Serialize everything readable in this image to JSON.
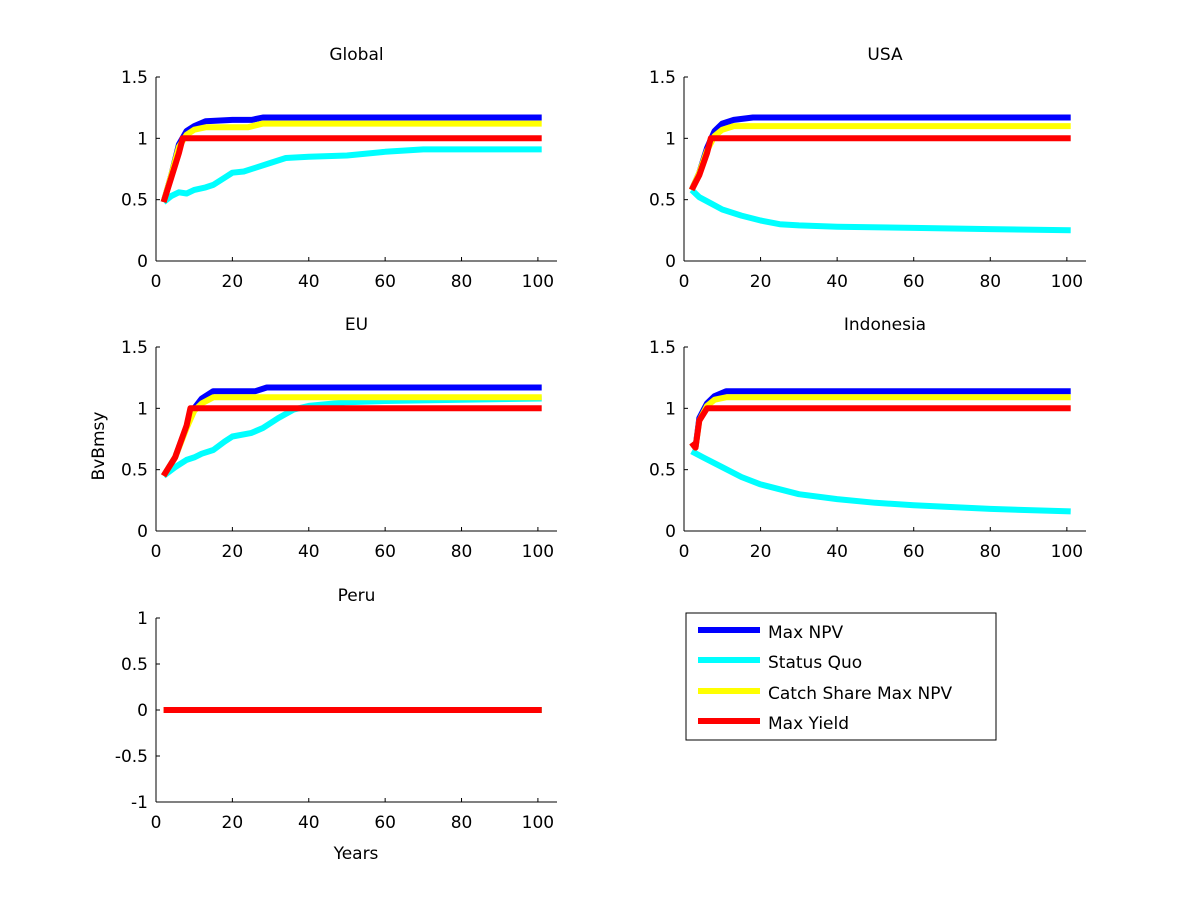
{
  "figure": {
    "ylabel": "BvBmsy",
    "xlabel": "Years"
  },
  "colors": {
    "Max NPV": "#0000ff",
    "Status Quo": "#00ffff",
    "Catch Share Max NPV": "#ffff00",
    "Max Yield": "#ff0000"
  },
  "legend": {
    "entries": [
      "Max NPV",
      "Status Quo",
      "Catch Share Max NPV",
      "Max Yield"
    ]
  },
  "chart_data": [
    {
      "type": "line",
      "title": "Global",
      "xlim": [
        0,
        105
      ],
      "ylim": [
        0,
        1.5
      ],
      "xticks": [
        0,
        20,
        40,
        60,
        80,
        100
      ],
      "yticks": [
        0,
        0.5,
        1,
        1.5
      ],
      "xtick_labels": [
        "0",
        "20",
        "40",
        "60",
        "80",
        "100"
      ],
      "ytick_labels": [
        "0",
        "0.5",
        "1",
        "1.5"
      ],
      "series": [
        {
          "name": "Max NPV",
          "points": [
            [
              2,
              0.48
            ],
            [
              4,
              0.7
            ],
            [
              6,
              0.95
            ],
            [
              8,
              1.06
            ],
            [
              10,
              1.1
            ],
            [
              13,
              1.14
            ],
            [
              20,
              1.15
            ],
            [
              25,
              1.15
            ],
            [
              28,
              1.17
            ],
            [
              101,
              1.17
            ]
          ]
        },
        {
          "name": "Status Quo",
          "points": [
            [
              2,
              0.48
            ],
            [
              4,
              0.53
            ],
            [
              6,
              0.56
            ],
            [
              8,
              0.55
            ],
            [
              10,
              0.58
            ],
            [
              13,
              0.6
            ],
            [
              15,
              0.62
            ],
            [
              18,
              0.68
            ],
            [
              20,
              0.72
            ],
            [
              23,
              0.73
            ],
            [
              26,
              0.76
            ],
            [
              30,
              0.8
            ],
            [
              34,
              0.84
            ],
            [
              40,
              0.85
            ],
            [
              50,
              0.86
            ],
            [
              60,
              0.89
            ],
            [
              70,
              0.91
            ],
            [
              101,
              0.91
            ]
          ]
        },
        {
          "name": "Catch Share Max NPV",
          "points": [
            [
              2,
              0.48
            ],
            [
              4,
              0.7
            ],
            [
              6,
              0.93
            ],
            [
              8,
              1.03
            ],
            [
              10,
              1.07
            ],
            [
              13,
              1.09
            ],
            [
              24,
              1.09
            ],
            [
              28,
              1.12
            ],
            [
              101,
              1.12
            ]
          ]
        },
        {
          "name": "Max Yield",
          "points": [
            [
              2,
              0.48
            ],
            [
              4,
              0.68
            ],
            [
              6,
              0.88
            ],
            [
              7,
              1.0
            ],
            [
              101,
              1.0
            ]
          ]
        }
      ]
    },
    {
      "type": "line",
      "title": "USA",
      "xlim": [
        0,
        105
      ],
      "ylim": [
        0,
        1.5
      ],
      "xticks": [
        0,
        20,
        40,
        60,
        80,
        100
      ],
      "yticks": [
        0,
        0.5,
        1,
        1.5
      ],
      "xtick_labels": [
        "0",
        "20",
        "40",
        "60",
        "80",
        "100"
      ],
      "ytick_labels": [
        "0",
        "0.5",
        "1",
        "1.5"
      ],
      "series": [
        {
          "name": "Max NPV",
          "points": [
            [
              2,
              0.58
            ],
            [
              4,
              0.72
            ],
            [
              6,
              0.92
            ],
            [
              8,
              1.06
            ],
            [
              10,
              1.12
            ],
            [
              13,
              1.15
            ],
            [
              18,
              1.17
            ],
            [
              101,
              1.17
            ]
          ]
        },
        {
          "name": "Status Quo",
          "points": [
            [
              2,
              0.58
            ],
            [
              4,
              0.52
            ],
            [
              7,
              0.47
            ],
            [
              10,
              0.42
            ],
            [
              15,
              0.37
            ],
            [
              20,
              0.33
            ],
            [
              25,
              0.3
            ],
            [
              30,
              0.29
            ],
            [
              40,
              0.28
            ],
            [
              60,
              0.27
            ],
            [
              80,
              0.26
            ],
            [
              101,
              0.25
            ]
          ]
        },
        {
          "name": "Catch Share Max NPV",
          "points": [
            [
              2,
              0.58
            ],
            [
              4,
              0.72
            ],
            [
              6,
              0.9
            ],
            [
              8,
              1.02
            ],
            [
              10,
              1.07
            ],
            [
              13,
              1.1
            ],
            [
              101,
              1.1
            ]
          ]
        },
        {
          "name": "Max Yield",
          "points": [
            [
              2,
              0.58
            ],
            [
              4,
              0.7
            ],
            [
              6,
              0.88
            ],
            [
              7,
              1.0
            ],
            [
              101,
              1.0
            ]
          ]
        }
      ]
    },
    {
      "type": "line",
      "title": "EU",
      "xlim": [
        0,
        105
      ],
      "ylim": [
        0,
        1.5
      ],
      "xticks": [
        0,
        20,
        40,
        60,
        80,
        100
      ],
      "yticks": [
        0,
        0.5,
        1,
        1.5
      ],
      "xtick_labels": [
        "0",
        "20",
        "40",
        "60",
        "80",
        "100"
      ],
      "ytick_labels": [
        "0",
        "0.5",
        "1",
        "1.5"
      ],
      "series": [
        {
          "name": "Max NPV",
          "points": [
            [
              2,
              0.45
            ],
            [
              5,
              0.6
            ],
            [
              8,
              0.85
            ],
            [
              10,
              1.0
            ],
            [
              12,
              1.08
            ],
            [
              15,
              1.14
            ],
            [
              26,
              1.14
            ],
            [
              29,
              1.17
            ],
            [
              101,
              1.17
            ]
          ]
        },
        {
          "name": "Status Quo",
          "points": [
            [
              2,
              0.45
            ],
            [
              5,
              0.52
            ],
            [
              8,
              0.58
            ],
            [
              10,
              0.6
            ],
            [
              12,
              0.63
            ],
            [
              15,
              0.66
            ],
            [
              18,
              0.73
            ],
            [
              20,
              0.77
            ],
            [
              25,
              0.8
            ],
            [
              28,
              0.84
            ],
            [
              32,
              0.92
            ],
            [
              36,
              0.99
            ],
            [
              40,
              1.02
            ],
            [
              50,
              1.05
            ],
            [
              60,
              1.06
            ],
            [
              80,
              1.07
            ],
            [
              101,
              1.08
            ]
          ]
        },
        {
          "name": "Catch Share Max NPV",
          "points": [
            [
              2,
              0.45
            ],
            [
              5,
              0.6
            ],
            [
              8,
              0.84
            ],
            [
              10,
              0.98
            ],
            [
              12,
              1.04
            ],
            [
              15,
              1.09
            ],
            [
              101,
              1.09
            ]
          ]
        },
        {
          "name": "Max Yield",
          "points": [
            [
              2,
              0.45
            ],
            [
              5,
              0.6
            ],
            [
              8,
              0.86
            ],
            [
              9,
              1.0
            ],
            [
              101,
              1.0
            ]
          ]
        }
      ]
    },
    {
      "type": "line",
      "title": "Indonesia",
      "xlim": [
        0,
        105
      ],
      "ylim": [
        0,
        1.5
      ],
      "xticks": [
        0,
        20,
        40,
        60,
        80,
        100
      ],
      "yticks": [
        0,
        0.5,
        1,
        1.5
      ],
      "xtick_labels": [
        "0",
        "20",
        "40",
        "60",
        "80",
        "100"
      ],
      "ytick_labels": [
        "0",
        "0.5",
        "1",
        "1.5"
      ],
      "series": [
        {
          "name": "Max NPV",
          "points": [
            [
              2,
              0.72
            ],
            [
              3,
              0.68
            ],
            [
              4,
              0.92
            ],
            [
              6,
              1.04
            ],
            [
              8,
              1.1
            ],
            [
              11,
              1.14
            ],
            [
              101,
              1.14
            ]
          ]
        },
        {
          "name": "Status Quo",
          "points": [
            [
              2,
              0.65
            ],
            [
              5,
              0.6
            ],
            [
              10,
              0.52
            ],
            [
              15,
              0.44
            ],
            [
              20,
              0.38
            ],
            [
              30,
              0.3
            ],
            [
              40,
              0.26
            ],
            [
              50,
              0.23
            ],
            [
              60,
              0.21
            ],
            [
              80,
              0.18
            ],
            [
              101,
              0.16
            ]
          ]
        },
        {
          "name": "Catch Share Max NPV",
          "points": [
            [
              2,
              0.72
            ],
            [
              3,
              0.68
            ],
            [
              4,
              0.9
            ],
            [
              6,
              1.02
            ],
            [
              8,
              1.07
            ],
            [
              11,
              1.09
            ],
            [
              101,
              1.09
            ]
          ]
        },
        {
          "name": "Max Yield",
          "points": [
            [
              2,
              0.72
            ],
            [
              3,
              0.68
            ],
            [
              4,
              0.9
            ],
            [
              6,
              1.0
            ],
            [
              101,
              1.0
            ]
          ]
        }
      ]
    },
    {
      "type": "line",
      "title": "Peru",
      "xlim": [
        0,
        105
      ],
      "ylim": [
        -1,
        1
      ],
      "xticks": [
        0,
        20,
        40,
        60,
        80,
        100
      ],
      "yticks": [
        -1,
        -0.5,
        0,
        0.5,
        1
      ],
      "xtick_labels": [
        "0",
        "20",
        "40",
        "60",
        "80",
        "100"
      ],
      "ytick_labels": [
        "-1",
        "-0.5",
        "0",
        "0.5",
        "1"
      ],
      "series": [
        {
          "name": "Max NPV",
          "points": [
            [
              2,
              0
            ],
            [
              101,
              0
            ]
          ]
        },
        {
          "name": "Status Quo",
          "points": [
            [
              2,
              0
            ],
            [
              101,
              0
            ]
          ]
        },
        {
          "name": "Catch Share Max NPV",
          "points": [
            [
              2,
              0
            ],
            [
              101,
              0
            ]
          ]
        },
        {
          "name": "Max Yield",
          "points": [
            [
              2,
              0
            ],
            [
              101,
              0
            ]
          ]
        }
      ]
    }
  ]
}
